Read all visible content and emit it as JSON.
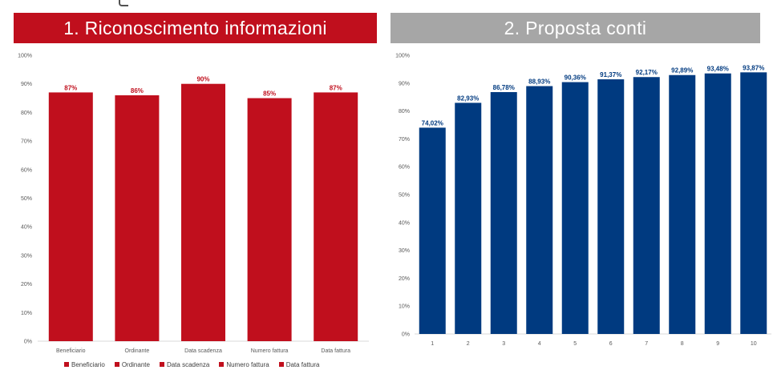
{
  "panels": {
    "left_title": "1. Riconoscimento informazioni",
    "right_title": "2. Proposta conti"
  },
  "colors": {
    "left_header": "#c00f1d",
    "right_header": "#a6a6a6",
    "left_bars": "#c00f1d",
    "right_bars": "#003a80"
  },
  "chart_data": [
    {
      "type": "bar",
      "title": "1. Riconoscimento informazioni",
      "categories": [
        "Beneficiario",
        "Ordinante",
        "Data scadenza",
        "Numero fattura",
        "Data fattura"
      ],
      "values": [
        87,
        86,
        90,
        85,
        87
      ],
      "data_labels": [
        "87%",
        "86%",
        "90%",
        "85%",
        "87%"
      ],
      "yticks": [
        "0%",
        "10%",
        "20%",
        "30%",
        "40%",
        "50%",
        "60%",
        "70%",
        "80%",
        "90%",
        "100%"
      ],
      "ylim": [
        0,
        100
      ],
      "legend": [
        "Beneficiario",
        "Ordinante",
        "Data scadenza",
        "Numero fattura",
        "Data fattura"
      ],
      "legend_position": "bottom",
      "grid": false
    },
    {
      "type": "bar",
      "title": "2. Proposta conti",
      "categories": [
        "1",
        "2",
        "3",
        "4",
        "5",
        "6",
        "7",
        "8",
        "9",
        "10"
      ],
      "values": [
        74.02,
        82.93,
        86.78,
        88.93,
        90.36,
        91.37,
        92.17,
        92.89,
        93.48,
        93.87
      ],
      "data_labels": [
        "74,02%",
        "82,93%",
        "86,78%",
        "88,93%",
        "90,36%",
        "91,37%",
        "92,17%",
        "92,89%",
        "93,48%",
        "93,87%"
      ],
      "yticks": [
        "0%",
        "10%",
        "20%",
        "30%",
        "40%",
        "50%",
        "60%",
        "70%",
        "80%",
        "90%",
        "100%"
      ],
      "ylim": [
        0,
        100
      ],
      "grid": false
    }
  ]
}
